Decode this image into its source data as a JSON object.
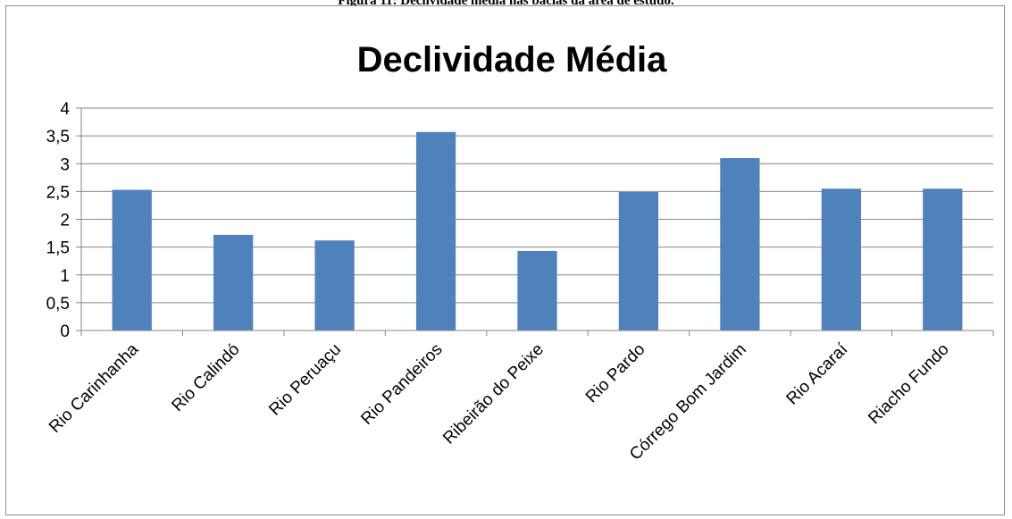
{
  "figure_caption": "Figura 11: Declividade média nas bacias da área de estudo.",
  "chart_data": {
    "type": "bar",
    "title": "Declividade Média",
    "categories": [
      "Rio Carinhanha",
      "Rio Calindó",
      "Rio Peruaçu",
      "Rio Pandeiros",
      "Ribeirão do Peixe",
      "Rio Pardo",
      "Córrego Bom Jardim",
      "Rio Acaraí",
      "Riacho Fundo"
    ],
    "values": [
      2.53,
      1.72,
      1.62,
      3.57,
      1.43,
      2.49,
      3.1,
      2.55,
      2.55
    ],
    "ylim": [
      0,
      4
    ],
    "yticks": [
      "0",
      "0,5",
      "1",
      "1,5",
      "2",
      "2,5",
      "3",
      "3,5",
      "4"
    ],
    "xlabel": "",
    "ylabel": "",
    "grid": true,
    "legend": "none",
    "bar_color": "#4f81bd"
  }
}
